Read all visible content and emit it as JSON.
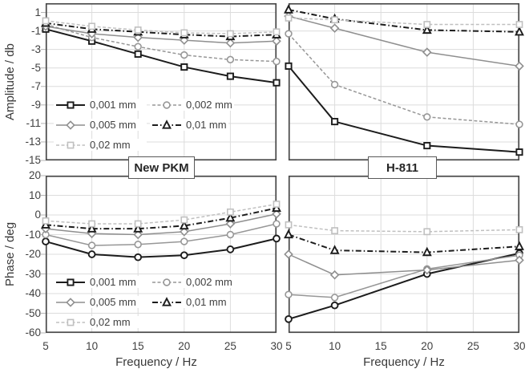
{
  "figure": {
    "columns": [
      {
        "title": "New PKM"
      },
      {
        "title": "H-811"
      }
    ],
    "x_axis": {
      "label": "Frequency / Hz",
      "range": [
        5,
        30
      ],
      "ticks": [
        5,
        10,
        15,
        20,
        25,
        30
      ]
    },
    "amplitude_axis": {
      "label": "Amplitude / db",
      "range": [
        2,
        -15
      ],
      "ticks": [
        1,
        -1,
        -3,
        -5,
        -7,
        -9,
        -11,
        -13,
        -15
      ]
    },
    "phase_axis": {
      "label": "Phase / deg",
      "range": [
        20,
        -60
      ],
      "ticks": [
        20,
        10,
        0,
        -10,
        -20,
        -30,
        -40,
        -50,
        -60
      ]
    }
  },
  "legend": {
    "items": [
      {
        "label": "0,001 mm",
        "color": "#1c1c1c",
        "dash": "",
        "marker": "square",
        "width": 2
      },
      {
        "label": "0,002 mm",
        "color": "#979797",
        "dash": "4 2.5",
        "marker": "circle",
        "width": 1.5
      },
      {
        "label": "0,005 mm",
        "color": "#8f8f8f",
        "dash": "",
        "marker": "diamond",
        "width": 1.5
      },
      {
        "label": "0,01 mm",
        "color": "#1c1c1c",
        "dash": "7 3 1.5 3",
        "marker": "triangle",
        "width": 2
      },
      {
        "label": "0,02 mm",
        "color": "#c0c0c0",
        "dash": "4 2.5",
        "marker": "square",
        "width": 1.5
      }
    ]
  },
  "chart_data": [
    {
      "id": "amplitude-new-pkm",
      "type": "line",
      "title": "New PKM",
      "xlabel": "Frequency / Hz",
      "ylabel": "Amplitude / db",
      "x": [
        5,
        10,
        15,
        20,
        25,
        30
      ],
      "ylim": [
        -15,
        2
      ],
      "grid": true,
      "legend_position": "inside-lower-left",
      "series": [
        {
          "name": "0,001 mm",
          "color": "#1c1c1c",
          "dash": "",
          "marker": "square",
          "width": 2,
          "values": [
            -0.8,
            -2.1,
            -3.5,
            -4.9,
            -5.9,
            -6.6
          ]
        },
        {
          "name": "0,002 mm",
          "color": "#979797",
          "dash": "4 2.5",
          "marker": "circle",
          "width": 1.5,
          "values": [
            -0.3,
            -1.7,
            -2.7,
            -3.6,
            -4.1,
            -4.3
          ]
        },
        {
          "name": "0,005 mm",
          "color": "#8f8f8f",
          "dash": "",
          "marker": "diamond",
          "width": 1.5,
          "values": [
            -0.5,
            -1.3,
            -1.7,
            -2.0,
            -2.3,
            -2.1
          ]
        },
        {
          "name": "0,01 mm",
          "color": "#1c1c1c",
          "dash": "7 3 1.5 3",
          "marker": "triangle",
          "width": 2,
          "values": [
            -0.15,
            -0.8,
            -1.1,
            -1.4,
            -1.6,
            -1.4
          ]
        },
        {
          "name": "0,02 mm",
          "color": "#c0c0c0",
          "dash": "4 2.5",
          "marker": "square",
          "width": 1.5,
          "values": [
            0.1,
            -0.5,
            -0.9,
            -1.2,
            -1.3,
            -1.1
          ]
        }
      ]
    },
    {
      "id": "amplitude-h811",
      "type": "line",
      "title": "H-811",
      "xlabel": "Frequency / Hz",
      "ylabel": "Amplitude / db",
      "x": [
        5,
        10,
        20,
        30
      ],
      "ylim": [
        -15,
        2
      ],
      "grid": true,
      "series": [
        {
          "name": "0,001 mm",
          "color": "#1c1c1c",
          "dash": "",
          "marker": "square",
          "width": 2,
          "values": [
            -4.8,
            -10.8,
            -13.4,
            -14.1
          ]
        },
        {
          "name": "0,002 mm",
          "color": "#979797",
          "dash": "4 2.5",
          "marker": "circle",
          "width": 1.5,
          "values": [
            -1.3,
            -6.8,
            -10.3,
            -11.1
          ]
        },
        {
          "name": "0,005 mm",
          "color": "#8f8f8f",
          "dash": "",
          "marker": "diamond",
          "width": 1.5,
          "values": [
            0.6,
            -0.7,
            -3.3,
            -4.8
          ]
        },
        {
          "name": "0,01 mm",
          "color": "#1c1c1c",
          "dash": "7 3 1.5 3",
          "marker": "triangle",
          "width": 2,
          "values": [
            1.3,
            0.3,
            -0.9,
            -1.1
          ]
        },
        {
          "name": "0,02 mm",
          "color": "#c0c0c0",
          "dash": "4 2.5",
          "marker": "square",
          "width": 1.5,
          "values": [
            0.4,
            0.2,
            -0.3,
            -0.3
          ]
        }
      ]
    },
    {
      "id": "phase-new-pkm",
      "type": "line",
      "title": "New PKM",
      "xlabel": "Frequency / Hz",
      "ylabel": "Phase / deg",
      "x": [
        5,
        10,
        15,
        20,
        25,
        30
      ],
      "ylim": [
        -60,
        20
      ],
      "grid": true,
      "legend_position": "inside-lower-left",
      "series": [
        {
          "name": "0,001 mm",
          "color": "#1c1c1c",
          "dash": "",
          "marker": "circle",
          "width": 2,
          "values": [
            -13.5,
            -20,
            -21.5,
            -20.5,
            -17.5,
            -12
          ]
        },
        {
          "name": "0,002 mm",
          "color": "#979797",
          "dash": "",
          "marker": "circle",
          "width": 1.5,
          "values": [
            -10,
            -15.5,
            -15,
            -13.5,
            -10,
            -4.5
          ]
        },
        {
          "name": "0,005 mm",
          "color": "#8f8f8f",
          "dash": "",
          "marker": "diamond",
          "width": 1.5,
          "values": [
            -7,
            -9.5,
            -10,
            -8.5,
            -4.5,
            0.5
          ]
        },
        {
          "name": "0,01 mm",
          "color": "#1c1c1c",
          "dash": "7 3 1.5 3",
          "marker": "triangle",
          "width": 2,
          "values": [
            -5,
            -7,
            -7,
            -5.5,
            -1.5,
            3.5
          ]
        },
        {
          "name": "0,02 mm",
          "color": "#c0c0c0",
          "dash": "4 2.5",
          "marker": "square",
          "width": 1.5,
          "values": [
            -3,
            -4.5,
            -4.5,
            -2.5,
            1.5,
            5.5
          ]
        }
      ]
    },
    {
      "id": "phase-h811",
      "type": "line",
      "title": "H-811",
      "xlabel": "Frequency / Hz",
      "ylabel": "Phase / deg",
      "x": [
        5,
        10,
        20,
        30
      ],
      "ylim": [
        -60,
        20
      ],
      "grid": true,
      "series": [
        {
          "name": "0,001 mm",
          "color": "#1c1c1c",
          "dash": "",
          "marker": "circle",
          "width": 2,
          "values": [
            -53,
            -46,
            -30,
            -19.5
          ]
        },
        {
          "name": "0,002 mm",
          "color": "#979797",
          "dash": "",
          "marker": "circle",
          "width": 1.5,
          "values": [
            -40.5,
            -42,
            -27.5,
            -20.5
          ]
        },
        {
          "name": "0,005 mm",
          "color": "#8f8f8f",
          "dash": "",
          "marker": "diamond",
          "width": 1.5,
          "values": [
            -20,
            -30.5,
            -28,
            -23
          ]
        },
        {
          "name": "0,01 mm",
          "color": "#1c1c1c",
          "dash": "7 3 1.5 3",
          "marker": "triangle",
          "width": 2,
          "values": [
            -10,
            -18,
            -19,
            -16
          ]
        },
        {
          "name": "0,02 mm",
          "color": "#c0c0c0",
          "dash": "4 2.5",
          "marker": "square",
          "width": 1.5,
          "values": [
            -5,
            -8,
            -8.5,
            -7.5
          ]
        }
      ]
    }
  ]
}
